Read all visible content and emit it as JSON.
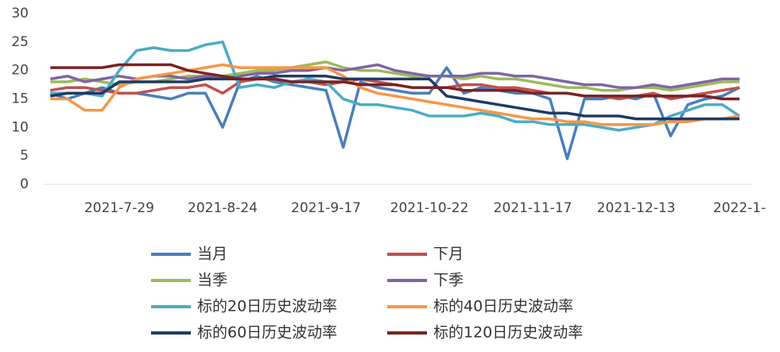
{
  "chart_data": {
    "type": "line",
    "categories": [
      null,
      null,
      null,
      null,
      "2021-7-29",
      null,
      null,
      null,
      null,
      null,
      "2021-8-24",
      null,
      null,
      null,
      null,
      null,
      "2021-9-17",
      null,
      null,
      null,
      null,
      null,
      "2021-10-22",
      null,
      null,
      null,
      null,
      null,
      "2021-11-17",
      null,
      null,
      null,
      null,
      null,
      "2021-12-13",
      null,
      null,
      null,
      null,
      null,
      "2022-1-"
    ],
    "ylim": [
      0,
      30
    ],
    "yticks": [
      0,
      5,
      10,
      15,
      20,
      25,
      30
    ],
    "grid": false,
    "series": [
      {
        "name": "当月",
        "color": "#4a7ebb",
        "values": [
          16,
          15,
          16,
          17,
          16,
          16,
          15.5,
          15,
          16,
          16,
          10,
          18,
          19,
          18,
          17.5,
          17,
          16.5,
          6.5,
          18,
          17,
          16.5,
          16,
          16,
          20.5,
          16,
          17,
          16.5,
          16,
          16,
          15,
          4.5,
          15,
          15,
          15.5,
          15,
          16,
          8.5,
          14,
          15,
          15.5,
          17
        ]
      },
      {
        "name": "下月",
        "color": "#c0504d",
        "values": [
          16.5,
          17,
          17,
          16.5,
          16,
          16,
          16.5,
          17,
          17,
          17.5,
          16,
          18,
          18.5,
          18.5,
          18,
          18,
          17.5,
          18,
          18.5,
          18,
          17.5,
          17,
          17,
          17,
          17.5,
          17.5,
          17,
          17,
          16.5,
          16,
          16,
          15.5,
          15.5,
          15,
          15.5,
          16,
          15,
          15.5,
          16,
          16.5,
          17
        ]
      },
      {
        "name": "当季",
        "color": "#9bbb59",
        "values": [
          18,
          18,
          18.5,
          18,
          17.5,
          18,
          18,
          18.5,
          19,
          19,
          19,
          19.5,
          20,
          20,
          20.5,
          21,
          21.5,
          20.5,
          20,
          20,
          19.5,
          19,
          19,
          19,
          18.5,
          19,
          18.5,
          18.5,
          18,
          17.5,
          17,
          17,
          16.5,
          16.5,
          17,
          17,
          16.5,
          17,
          17.5,
          18,
          18
        ]
      },
      {
        "name": "下季",
        "color": "#8064a2",
        "values": [
          18.5,
          19,
          18,
          18.5,
          19,
          18.5,
          19,
          19,
          18.5,
          19,
          18.5,
          19,
          19.5,
          19.5,
          20,
          20,
          20.5,
          20,
          20.5,
          21,
          20,
          19.5,
          19,
          19,
          19,
          19.5,
          19.5,
          19,
          19,
          18.5,
          18,
          17.5,
          17.5,
          17,
          17,
          17.5,
          17,
          17.5,
          18,
          18.5,
          18.5
        ]
      },
      {
        "name": "标的20日历史波动率",
        "color": "#4bacc6",
        "values": [
          16,
          16,
          16,
          15.5,
          20,
          23.5,
          24,
          23.5,
          23.5,
          24.5,
          25,
          17,
          17.5,
          17,
          18,
          18.5,
          18,
          15,
          14,
          14,
          13.5,
          13,
          12,
          12,
          12,
          12.5,
          12,
          11,
          11,
          10.5,
          10.5,
          10.5,
          10,
          9.5,
          10,
          10.5,
          12,
          13,
          14,
          14,
          12
        ]
      },
      {
        "name": "标的40日历史波动率",
        "color": "#f79646",
        "values": [
          15,
          15,
          13,
          13,
          17,
          18.5,
          19,
          19.5,
          20,
          20.5,
          21,
          20.5,
          20.5,
          20.5,
          20.5,
          20.5,
          20.5,
          19,
          17,
          16,
          15.5,
          15,
          14.5,
          14,
          13.5,
          13,
          12.5,
          12,
          11.5,
          11.5,
          11,
          11,
          10.5,
          10.5,
          10.5,
          10.5,
          11,
          11,
          11.5,
          11.5,
          12
        ]
      },
      {
        "name": "标的60日历史波动率",
        "color": "#1f3a64",
        "values": [
          15.5,
          16,
          16,
          16,
          18,
          18,
          18,
          18,
          18,
          18.5,
          18.5,
          18.5,
          18.5,
          19,
          19,
          19,
          19,
          18.5,
          18.5,
          18.5,
          18.5,
          18.5,
          18.5,
          15.5,
          15,
          14.5,
          14,
          13.5,
          13,
          12.5,
          12.5,
          12,
          12,
          12,
          11.5,
          11.5,
          11.5,
          11.5,
          11.5,
          11.5,
          11.5
        ]
      },
      {
        "name": "标的120日历史波动率",
        "color": "#7b2222",
        "values": [
          20.5,
          20.5,
          20.5,
          20.5,
          21,
          21,
          21,
          21,
          20,
          19.5,
          19,
          18.5,
          18.5,
          18.5,
          18,
          18,
          18,
          18,
          17.5,
          17.5,
          17.5,
          17,
          17,
          17,
          16.5,
          16.5,
          16.5,
          16.5,
          16,
          16,
          16,
          15.5,
          15.5,
          15.5,
          15.5,
          15.5,
          15.5,
          15.5,
          15.5,
          15,
          15
        ]
      }
    ]
  }
}
